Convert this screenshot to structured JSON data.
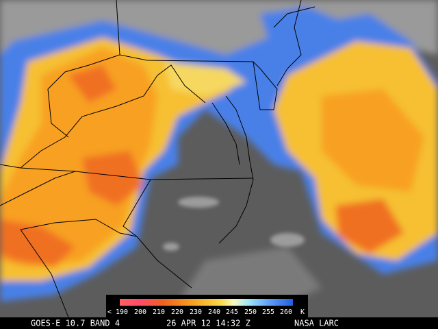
{
  "colorbar": {
    "labels": [
      "< 190",
      "200",
      "210",
      "220",
      "230",
      "240",
      "245",
      "250",
      "255",
      "260"
    ],
    "unit": "K"
  },
  "footer": {
    "satellite": "GOES-E 10.7 BAND 4",
    "time": "26 APR 12 14:32 Z",
    "source": "NASA LARC"
  }
}
